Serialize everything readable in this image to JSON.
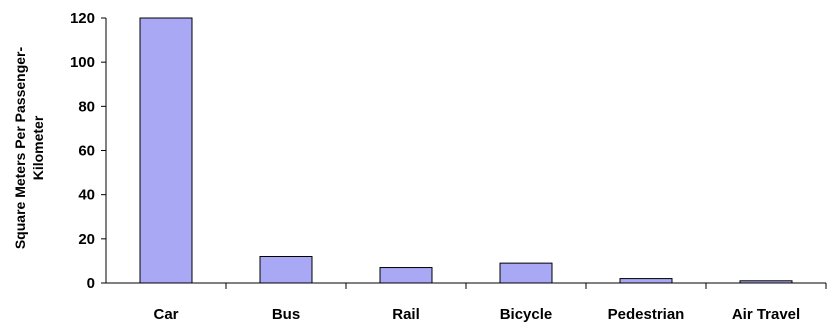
{
  "chart_data": {
    "type": "bar",
    "categories": [
      "Car",
      "Bus",
      "Rail",
      "Bicycle",
      "Pedestrian",
      "Air Travel"
    ],
    "values": [
      120,
      12,
      7,
      9,
      2,
      1
    ],
    "ylabel_lines": [
      "Square Meters Per Passenger-",
      "Kilometer"
    ],
    "ylim": [
      0,
      120
    ],
    "yticks": [
      0,
      20,
      40,
      60,
      80,
      100,
      120
    ],
    "grid": false,
    "legend": "none",
    "colors": {
      "bar_fill": "#a8a8f4",
      "bar_stroke": "#000000",
      "axis": "#000000"
    }
  }
}
